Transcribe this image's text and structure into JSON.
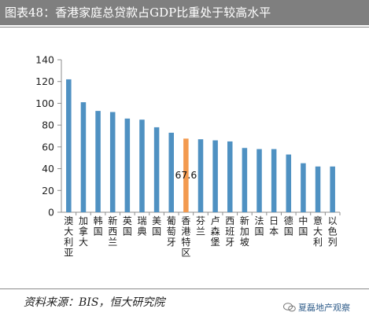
{
  "header": {
    "title": "图表48：香港家庭总贷款占GDP比重处于较高水平"
  },
  "footer": {
    "source": "资料来源：BIS，恒大研究院",
    "watermark": "夏磊地产观察",
    "watermark_icon": "wechat-logo-icon"
  },
  "colors": {
    "bar": "#4f91c2",
    "highlight_bar": "#f39a4f",
    "title_bg": "#7f7f7f"
  },
  "chart_data": {
    "type": "bar",
    "title": "",
    "xlabel": "",
    "ylabel": "",
    "ylim": [
      0,
      140
    ],
    "yticks": [
      0,
      20,
      40,
      60,
      80,
      100,
      120,
      140
    ],
    "grid": false,
    "categories": [
      "澳大利亚",
      "加拿大",
      "韩国",
      "新西兰",
      "英国",
      "瑞典",
      "美国",
      "葡萄牙",
      "香港特区",
      "芬兰",
      "卢森堡",
      "西班牙",
      "新加坡",
      "法国",
      "日本",
      "德国",
      "中国",
      "意大利",
      "以色列"
    ],
    "values": [
      122,
      101,
      93,
      92,
      86,
      85,
      78,
      73,
      67.6,
      67,
      66,
      65,
      59,
      58,
      58,
      53,
      45,
      42,
      42
    ],
    "highlight_index": 8,
    "data_labels": [
      {
        "index": 8,
        "text": "67.6"
      }
    ]
  }
}
